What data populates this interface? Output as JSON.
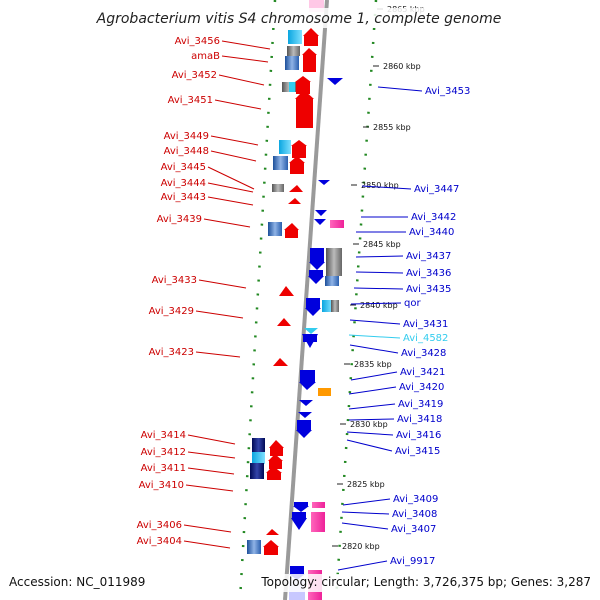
{
  "title": "Agrobacterium vitis S4 chromosome 1, complete genome",
  "accession": "Accession: NC_011989",
  "topology": "Topology: circular; Length: 3,726,375 bp; Genes: 3,287",
  "colors": {
    "leftLabel": "#cc0000",
    "rightLabel": "#0000cc",
    "highlight": "#33ccee",
    "dotted": "#228822"
  },
  "ticks": [
    {
      "label": "2865 kbp"
    },
    {
      "label": "2860 kbp"
    },
    {
      "label": "2855 kbp"
    },
    {
      "label": "2850 kbp"
    },
    {
      "label": "2845 kbp"
    },
    {
      "label": "2840 kbp"
    },
    {
      "label": "2835 kbp"
    },
    {
      "label": "2830 kbp"
    },
    {
      "label": "2825 kbp"
    },
    {
      "label": "2820 kbp"
    }
  ],
  "leftLabels": [
    {
      "text": "Avi_3456"
    },
    {
      "text": "amaB"
    },
    {
      "text": "Avi_3452"
    },
    {
      "text": "Avi_3451"
    },
    {
      "text": "Avi_3449"
    },
    {
      "text": "Avi_3448"
    },
    {
      "text": "Avi_3445"
    },
    {
      "text": "Avi_3444"
    },
    {
      "text": "Avi_3443"
    },
    {
      "text": "Avi_3439"
    },
    {
      "text": "Avi_3433"
    },
    {
      "text": "Avi_3429"
    },
    {
      "text": "Avi_3423"
    },
    {
      "text": "Avi_3414"
    },
    {
      "text": "Avi_3412"
    },
    {
      "text": "Avi_3411"
    },
    {
      "text": "Avi_3410"
    },
    {
      "text": "Avi_3406"
    },
    {
      "text": "Avi_3404"
    }
  ],
  "rightLabels": [
    {
      "text": "Avi_3453"
    },
    {
      "text": "Avi_3447"
    },
    {
      "text": "Avi_3442"
    },
    {
      "text": "Avi_3440"
    },
    {
      "text": "Avi_3437"
    },
    {
      "text": "Avi_3436"
    },
    {
      "text": "Avi_3435"
    },
    {
      "text": "qor"
    },
    {
      "text": "Avi_3431"
    },
    {
      "text": "Avi_4582"
    },
    {
      "text": "Avi_3428"
    },
    {
      "text": "Avi_3421"
    },
    {
      "text": "Avi_3420"
    },
    {
      "text": "Avi_3419"
    },
    {
      "text": "Avi_3418"
    },
    {
      "text": "Avi_3416"
    },
    {
      "text": "Avi_3415"
    },
    {
      "text": "Avi_3409"
    },
    {
      "text": "Avi_3408"
    },
    {
      "text": "Avi_3407"
    },
    {
      "text": "Avi_9917"
    }
  ]
}
